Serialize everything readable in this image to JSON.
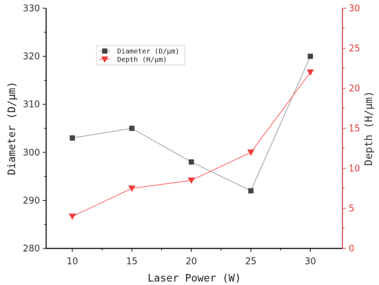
{
  "chart_data": {
    "type": "line",
    "x": [
      10,
      15,
      20,
      25,
      30
    ],
    "xlabel": "Laser Power (W)",
    "xlim": [
      7.8,
      32.7
    ],
    "x_ticks": [
      10,
      15,
      20,
      25,
      30
    ],
    "series": [
      {
        "name": "Diameter (D/μm)",
        "axis": "left",
        "marker": "square",
        "color": "#444444",
        "line_color": "#999999",
        "values": [
          303,
          305,
          298,
          292,
          320
        ]
      },
      {
        "name": "Depth (H/μm)",
        "axis": "right",
        "marker": "triangle-down",
        "color": "#ee3b3b",
        "line_color": "#ff5555",
        "values": [
          4,
          7.5,
          8.5,
          12,
          22
        ]
      }
    ],
    "y_left": {
      "label": "Diameter (D/μm)",
      "ylim": [
        280,
        330
      ],
      "ticks": [
        280,
        290,
        300,
        310,
        320,
        330
      ]
    },
    "y_right": {
      "label": "Depth (H/μm)",
      "ylim": [
        0,
        30
      ],
      "ticks": [
        0,
        5,
        10,
        15,
        20,
        25,
        30
      ],
      "color": "#e03c3c"
    },
    "legend": {
      "placement": "top-left"
    },
    "grid": false
  }
}
